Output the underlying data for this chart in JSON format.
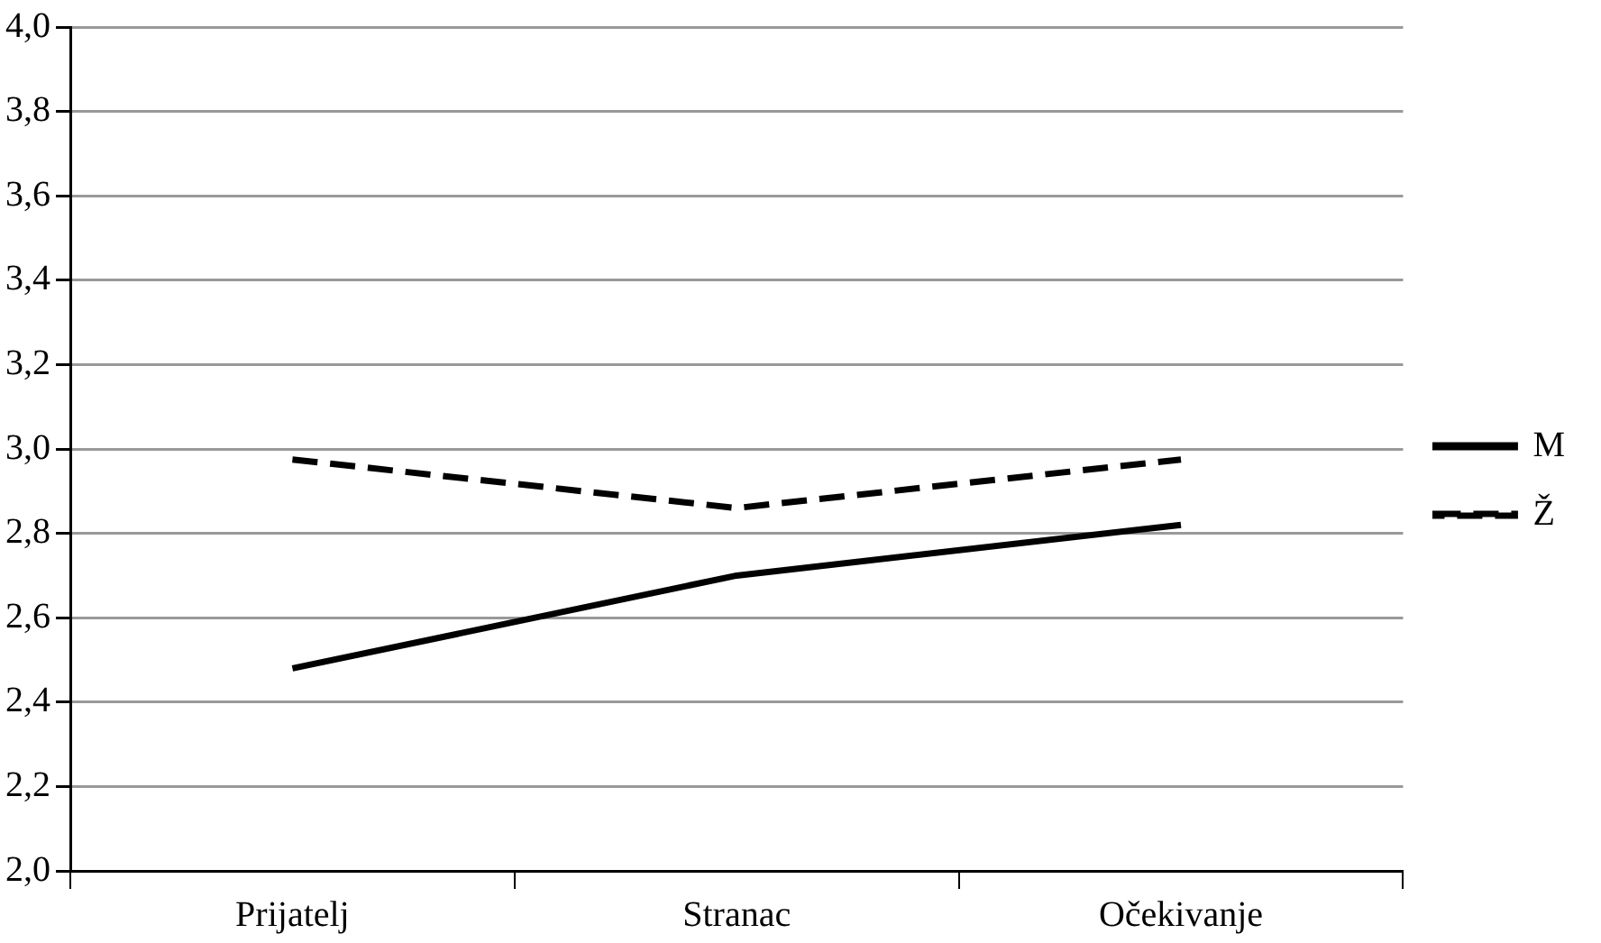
{
  "chart_data": {
    "type": "line",
    "categories": [
      "Prijatelj",
      "Stranac",
      "Očekivanje"
    ],
    "series": [
      {
        "name": "M",
        "color": "#000000",
        "line_style": "solid",
        "values": [
          2.48,
          2.7,
          2.82
        ]
      },
      {
        "name": "Ž",
        "color": "#000000",
        "line_style": "dashed",
        "values": [
          2.975,
          2.86,
          2.975
        ]
      }
    ],
    "ylim": [
      2,
      4
    ],
    "yticks": [
      {
        "value": 2,
        "label": "2,0"
      },
      {
        "value": 2.2,
        "label": "2,2"
      },
      {
        "value": 2.4,
        "label": "2,4"
      },
      {
        "value": 2.6,
        "label": "2,6"
      },
      {
        "value": 2.8,
        "label": "2,8"
      },
      {
        "value": 3,
        "label": "3,0"
      },
      {
        "value": 3.2,
        "label": "3,2"
      },
      {
        "value": 3.4,
        "label": "3,4"
      },
      {
        "value": 3.6,
        "label": "3,6"
      },
      {
        "value": 3.8,
        "label": "3,8"
      },
      {
        "value": 4,
        "label": "4,0"
      }
    ],
    "grid": "y",
    "legend": "right",
    "marker": "none"
  }
}
